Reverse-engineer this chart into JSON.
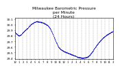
{
  "title": "Milwaukee Barometric Pressure\nper Minute\n(24 Hours)",
  "title_fontsize": 4.2,
  "background_color": "#ffffff",
  "plot_bg_color": "#ffffff",
  "dot_color": "#0000cc",
  "dot_size": 0.4,
  "grid_color": "#888888",
  "grid_style": "--",
  "ylim": [
    29.38,
    30.12
  ],
  "ytick_fontsize": 3.2,
  "xtick_fontsize": 2.8,
  "num_points": 1440,
  "waypoints_x": [
    0,
    30,
    60,
    90,
    120,
    150,
    180,
    210,
    240,
    280,
    320,
    360,
    400,
    440,
    480,
    520,
    560,
    600,
    640,
    680,
    720,
    760,
    800,
    840,
    880,
    920,
    960,
    1000,
    1040,
    1080,
    1110,
    1140,
    1170,
    1200,
    1230,
    1260,
    1290,
    1320,
    1350,
    1380,
    1410,
    1439
  ],
  "waypoints_y": [
    29.87,
    29.83,
    29.8,
    29.82,
    29.86,
    29.9,
    29.93,
    29.97,
    30.01,
    30.04,
    30.06,
    30.05,
    30.04,
    30.02,
    29.99,
    29.93,
    29.82,
    29.7,
    29.6,
    29.55,
    29.52,
    29.5,
    29.48,
    29.46,
    29.44,
    29.42,
    29.41,
    29.4,
    29.41,
    29.43,
    29.47,
    29.52,
    29.58,
    29.63,
    29.68,
    29.72,
    29.76,
    29.79,
    29.82,
    29.84,
    29.86,
    29.88
  ],
  "noise_seed": 42,
  "noise_std": 0.004,
  "vgrid_count": 24,
  "yticks": [
    29.4,
    29.5,
    29.6,
    29.7,
    29.8,
    29.9,
    30.0,
    30.1
  ],
  "xtick_labels": [
    "12",
    "1",
    "2",
    "3",
    "4",
    "5",
    "6",
    "7",
    "8",
    "9",
    "10",
    "11",
    "12",
    "1",
    "2",
    "3",
    "4",
    "5",
    "6",
    "7",
    "8",
    "9",
    "10",
    "11",
    "3"
  ]
}
